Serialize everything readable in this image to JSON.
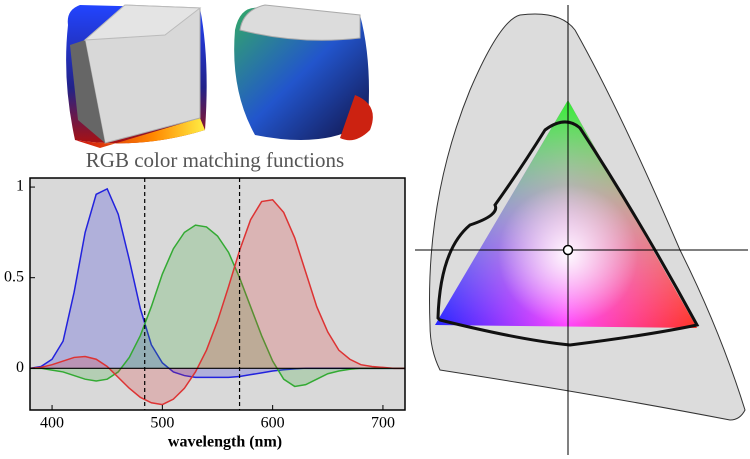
{
  "chart_data": {
    "type": "line",
    "title": "RGB color matching functions",
    "x_label": "wavelength (nm)",
    "x": [
      380,
      390,
      400,
      410,
      420,
      430,
      440,
      450,
      460,
      470,
      480,
      490,
      500,
      510,
      520,
      530,
      540,
      550,
      560,
      570,
      580,
      590,
      600,
      610,
      620,
      630,
      640,
      650,
      660,
      670,
      680,
      690,
      700,
      710,
      720
    ],
    "series": [
      {
        "color": "#2222dd",
        "values": [
          0,
          0.01,
          0.05,
          0.15,
          0.42,
          0.75,
          0.96,
          0.99,
          0.85,
          0.6,
          0.33,
          0.13,
          0.03,
          -0.02,
          -0.04,
          -0.05,
          -0.05,
          -0.05,
          -0.05,
          -0.045,
          -0.035,
          -0.025,
          -0.015,
          -0.008,
          -0.003,
          0,
          0,
          0,
          0,
          0,
          0,
          0,
          0,
          0,
          0
        ]
      },
      {
        "color": "#33aa33",
        "values": [
          0,
          0,
          -0.01,
          -0.02,
          -0.04,
          -0.06,
          -0.07,
          -0.06,
          -0.02,
          0.06,
          0.18,
          0.34,
          0.52,
          0.66,
          0.75,
          0.79,
          0.78,
          0.73,
          0.64,
          0.5,
          0.34,
          0.18,
          0.04,
          -0.06,
          -0.1,
          -0.09,
          -0.06,
          -0.03,
          -0.015,
          -0.005,
          0,
          0,
          0,
          0,
          0
        ]
      },
      {
        "color": "#dd3333",
        "values": [
          0,
          0.005,
          0.02,
          0.04,
          0.06,
          0.065,
          0.05,
          0.01,
          -0.05,
          -0.11,
          -0.16,
          -0.19,
          -0.2,
          -0.17,
          -0.11,
          -0.02,
          0.1,
          0.26,
          0.45,
          0.65,
          0.82,
          0.92,
          0.93,
          0.86,
          0.72,
          0.53,
          0.34,
          0.2,
          0.1,
          0.05,
          0.02,
          0.01,
          0.005,
          0,
          0
        ]
      }
    ],
    "vlines": [
      484,
      570
    ],
    "xlim": [
      380,
      720
    ],
    "xticks": [
      400,
      500,
      600,
      700
    ],
    "ylim": [
      -0.23,
      1.05
    ],
    "yticks": [
      0,
      0.5,
      1
    ]
  }
}
